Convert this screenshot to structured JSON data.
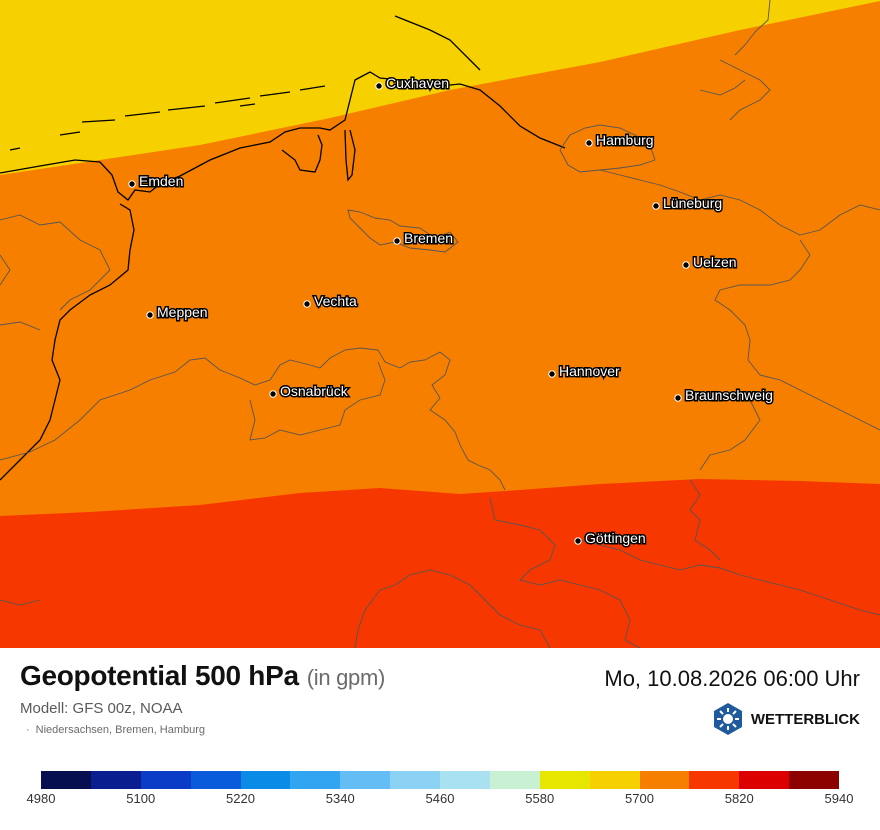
{
  "map": {
    "band_colors": {
      "yellow": "#F7D000",
      "orange": "#F77F00",
      "red": "#F73700"
    },
    "boundary_color": "#555555",
    "coast_color": "#000000",
    "cities": [
      {
        "name": "Cuxhaven"
      },
      {
        "name": "Hamburg"
      },
      {
        "name": "Emden"
      },
      {
        "name": "Lüneburg"
      },
      {
        "name": "Bremen"
      },
      {
        "name": "Uelzen"
      },
      {
        "name": "Meppen"
      },
      {
        "name": "Vechta"
      },
      {
        "name": "Osnabrück"
      },
      {
        "name": "Hannover"
      },
      {
        "name": "Braunschweig"
      },
      {
        "name": "Göttingen"
      }
    ]
  },
  "footer": {
    "title": "Geopotential 500 hPa",
    "unit": "(in gpm)",
    "model": "Modell: GFS 00z, NOAA",
    "region": "Niedersachsen, Bremen, Hamburg",
    "datetime": "Mo, 10.08.2026 06:00 Uhr",
    "brand": "WETTERBLICK"
  },
  "scale": {
    "colors": [
      "#061050",
      "#0A1E90",
      "#0A3CC8",
      "#0A5ADC",
      "#0A8CE6",
      "#32A5F0",
      "#64BEF5",
      "#8CD2F5",
      "#AAE1F0",
      "#C8F0D2",
      "#E6E600",
      "#F7D000",
      "#F77F00",
      "#F73700",
      "#DC0000",
      "#8C0000"
    ],
    "tick_labels": [
      "4980",
      "5100",
      "5220",
      "5340",
      "5460",
      "5580",
      "5700",
      "5820",
      "5940"
    ]
  }
}
